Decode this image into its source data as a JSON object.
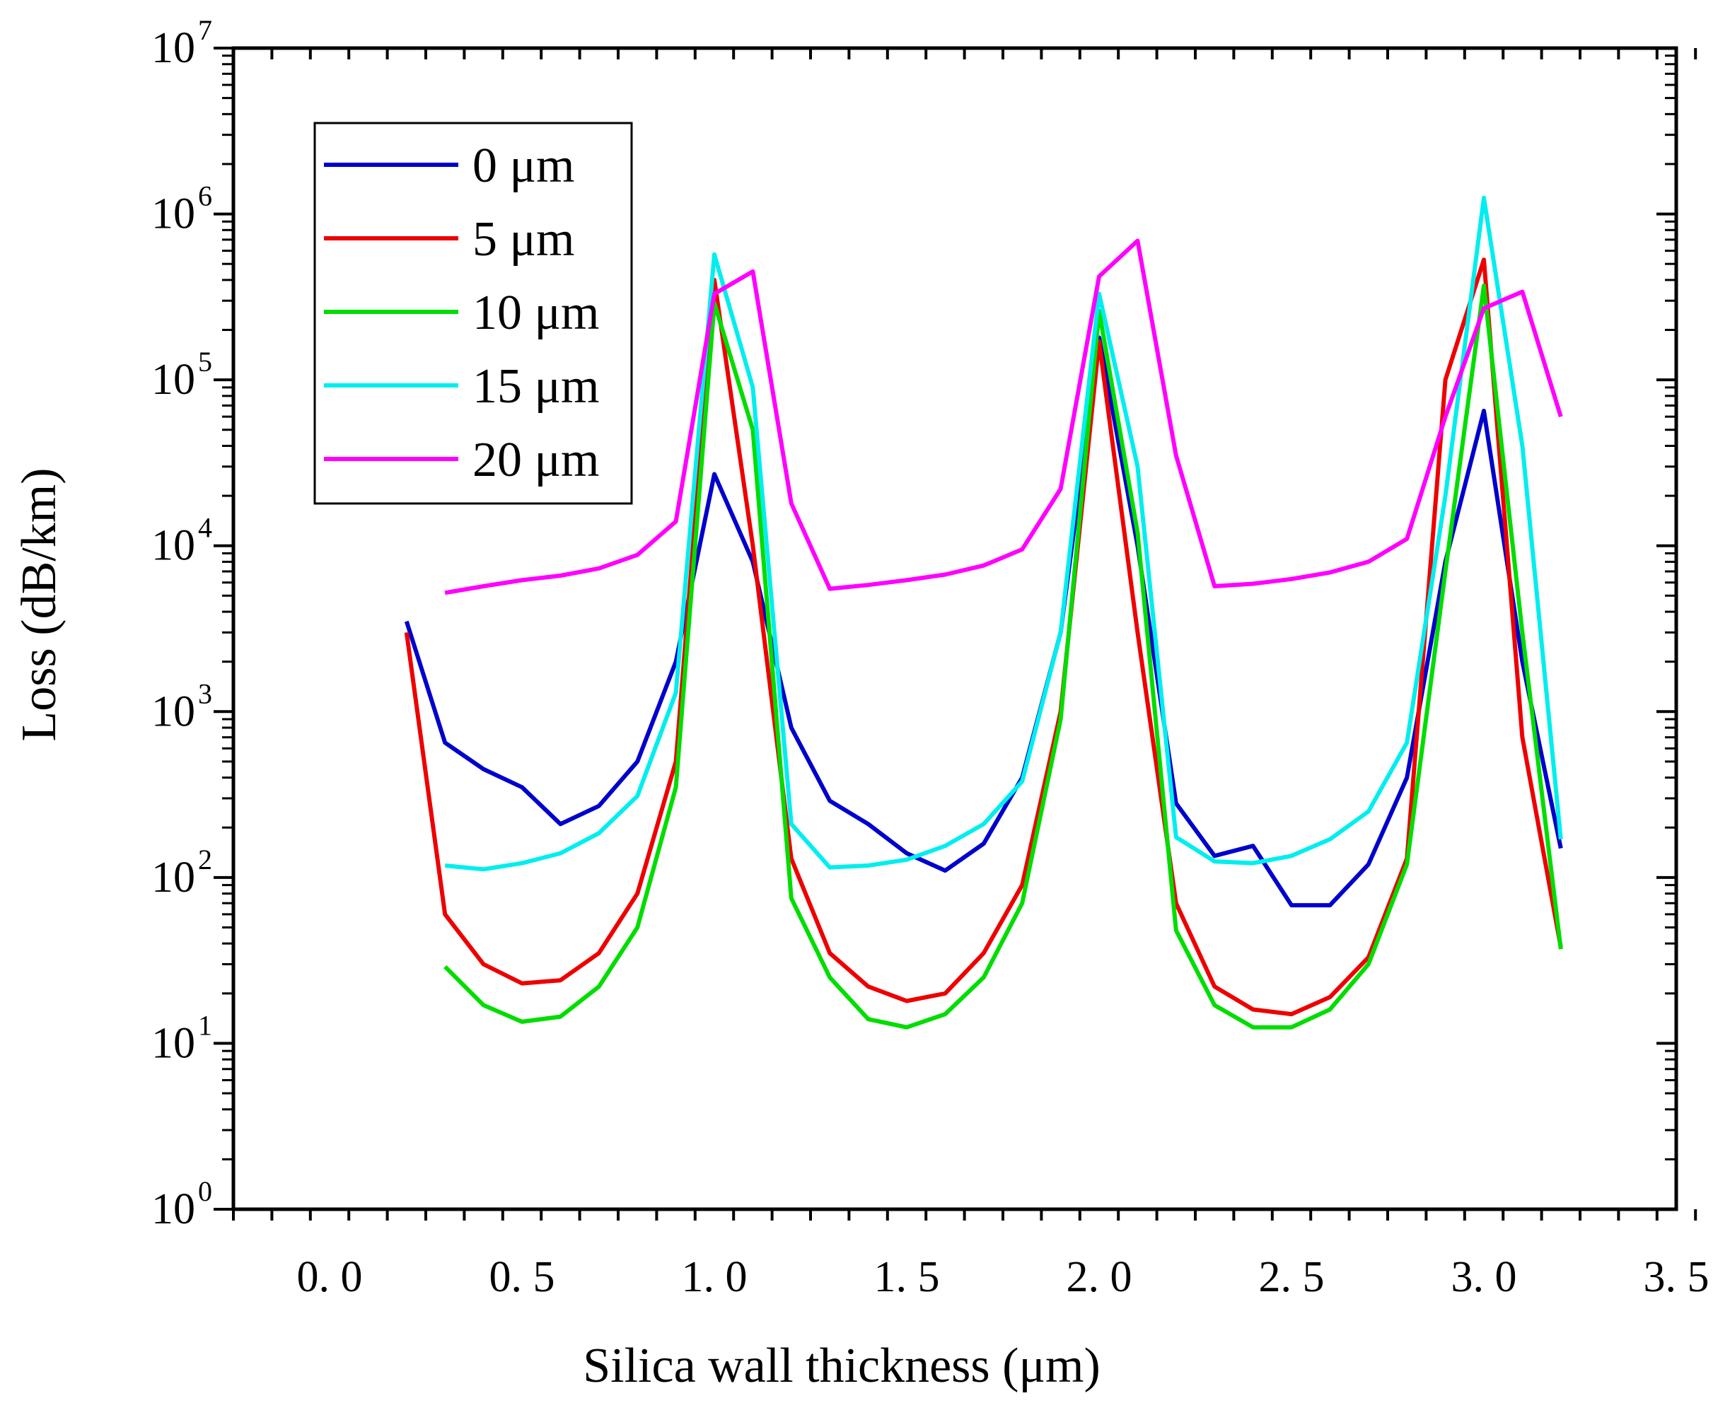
{
  "chart_data": {
    "type": "line",
    "title": "",
    "xlabel": "Silica wall thickness (μm)",
    "ylabel": "Loss (dB/km)",
    "xlim": [
      -0.25,
      3.5
    ],
    "ylim": [
      1,
      10000000
    ],
    "yscale": "log",
    "xticks": [
      0.0,
      0.5,
      1.0,
      1.5,
      2.0,
      2.5,
      3.0,
      3.5
    ],
    "xtick_labels": [
      "0. 0",
      "0. 5",
      "1. 0",
      "1. 5",
      "2. 0",
      "2. 5",
      "3. 0",
      "3. 5"
    ],
    "yticks": [
      {
        "base": "10",
        "exp": "0",
        "value": 1
      },
      {
        "base": "10",
        "exp": "1",
        "value": 10
      },
      {
        "base": "10",
        "exp": "2",
        "value": 100
      },
      {
        "base": "10",
        "exp": "3",
        "value": 1000
      },
      {
        "base": "10",
        "exp": "4",
        "value": 10000
      },
      {
        "base": "10",
        "exp": "5",
        "value": 100000
      },
      {
        "base": "10",
        "exp": "6",
        "value": 1000000
      },
      {
        "base": "10",
        "exp": "7",
        "value": 10000000
      }
    ],
    "grid": false,
    "legend_position": "top-left",
    "series": [
      {
        "name": "0 μm",
        "color": "#0000cc",
        "x": [
          0.2,
          0.3,
          0.4,
          0.5,
          0.6,
          0.7,
          0.8,
          0.9,
          1.0,
          1.1,
          1.2,
          1.3,
          1.4,
          1.5,
          1.6,
          1.7,
          1.8,
          1.9,
          2.0,
          2.1,
          2.2,
          2.3,
          2.4,
          2.5,
          2.6,
          2.7,
          2.8,
          2.9,
          3.0,
          3.1,
          3.2
        ],
        "y": [
          3500,
          650,
          450,
          350,
          210,
          270,
          500,
          2000,
          27000,
          8000,
          800,
          290,
          210,
          140,
          110,
          160,
          400,
          3000,
          180000,
          10000,
          280,
          135,
          155,
          68,
          68,
          120,
          400,
          8000,
          65000,
          2000,
          150
        ]
      },
      {
        "name": "5 μm",
        "color": "#ee0000",
        "x": [
          0.2,
          0.3,
          0.4,
          0.5,
          0.6,
          0.7,
          0.8,
          0.9,
          1.0,
          1.1,
          1.2,
          1.3,
          1.4,
          1.5,
          1.6,
          1.7,
          1.8,
          1.9,
          2.0,
          2.1,
          2.2,
          2.3,
          2.4,
          2.5,
          2.6,
          2.7,
          2.8,
          2.9,
          3.0,
          3.1,
          3.2
        ],
        "y": [
          3000,
          60,
          30,
          23,
          24,
          35,
          80,
          500,
          400000,
          10000,
          130,
          35,
          22,
          18,
          20,
          35,
          90,
          1000,
          170000,
          3000,
          70,
          22,
          16,
          15,
          19,
          33,
          130,
          100000,
          530000,
          700,
          38
        ]
      },
      {
        "name": "10 μm",
        "color": "#00dd00",
        "x": [
          0.3,
          0.4,
          0.5,
          0.6,
          0.7,
          0.8,
          0.9,
          1.0,
          1.1,
          1.2,
          1.3,
          1.4,
          1.5,
          1.6,
          1.7,
          1.8,
          1.9,
          2.0,
          2.1,
          2.2,
          2.3,
          2.4,
          2.5,
          2.6,
          2.7,
          2.8,
          2.9,
          3.0,
          3.1,
          3.2
        ],
        "y": [
          29,
          17,
          13.5,
          14.5,
          22,
          50,
          350,
          290000,
          50000,
          75,
          25,
          14,
          12.5,
          15,
          25,
          70,
          900,
          260000,
          12000,
          48,
          17,
          12.5,
          12.5,
          16,
          30,
          120,
          7000,
          370000,
          3000,
          37
        ]
      },
      {
        "name": "15 μm",
        "color": "#00eeee",
        "x": [
          0.3,
          0.4,
          0.5,
          0.6,
          0.7,
          0.8,
          0.9,
          1.0,
          1.1,
          1.2,
          1.3,
          1.4,
          1.5,
          1.6,
          1.7,
          1.8,
          1.9,
          2.0,
          2.1,
          2.2,
          2.3,
          2.4,
          2.5,
          2.6,
          2.7,
          2.8,
          2.9,
          3.0,
          3.1,
          3.2
        ],
        "y": [
          118,
          112,
          122,
          140,
          185,
          310,
          1300,
          570000,
          90000,
          210,
          115,
          118,
          128,
          155,
          210,
          380,
          3000,
          330000,
          30000,
          175,
          125,
          122,
          135,
          170,
          250,
          650,
          20000,
          1250000,
          40000,
          170
        ]
      },
      {
        "name": "20 μm",
        "color": "#ff00ff",
        "x": [
          0.3,
          0.4,
          0.5,
          0.6,
          0.7,
          0.8,
          0.9,
          1.0,
          1.1,
          1.2,
          1.3,
          1.4,
          1.5,
          1.6,
          1.7,
          1.8,
          1.9,
          2.0,
          2.1,
          2.2,
          2.3,
          2.4,
          2.5,
          2.6,
          2.7,
          2.8,
          2.9,
          3.0,
          3.1,
          3.2
        ],
        "y": [
          5200,
          5700,
          6200,
          6600,
          7300,
          8800,
          14000,
          330000,
          450000,
          18000,
          5500,
          5800,
          6200,
          6700,
          7600,
          9500,
          22000,
          420000,
          690000,
          35000,
          5700,
          5900,
          6300,
          6900,
          8000,
          11000,
          60000,
          270000,
          340000,
          60000
        ]
      }
    ]
  }
}
